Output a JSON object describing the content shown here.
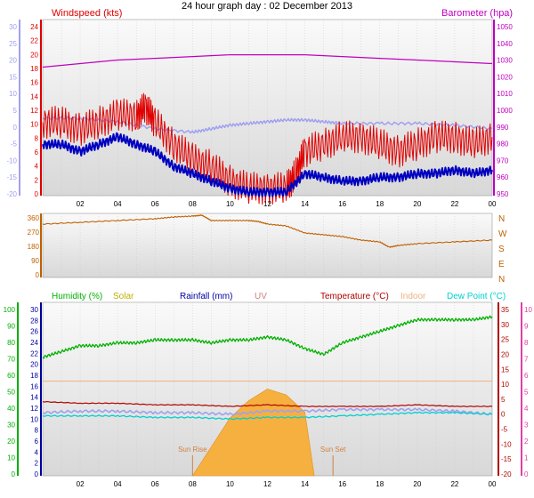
{
  "title": "24 hour graph day : 02 December 2013",
  "colors": {
    "windspeed": "#e00000",
    "gust_avg": "#0000c0",
    "barometer": "#c000c0",
    "winddir": "#c06000",
    "humidity": "#00b000",
    "solar": "#c0b000",
    "rainfall": "#0000a0",
    "uv": "#d08080",
    "temperature": "#b00000",
    "indoor": "#f0b080",
    "dewpoint": "#00d0d0",
    "lavender": "#a0a0f0",
    "sunrise": "#d08040",
    "plot_bg": "#e8e8e8"
  },
  "x_ticks": [
    "02",
    "04",
    "06",
    "08",
    "10",
    "12",
    "14",
    "16",
    "18",
    "20",
    "22",
    "00"
  ],
  "chart_data": [
    {
      "type": "line",
      "title": "Wind / Barometer",
      "x_range": [
        0,
        24
      ],
      "axes": {
        "left_outer": {
          "label": "",
          "ticks": [
            "30",
            "25",
            "20",
            "15",
            "10",
            "5",
            "0",
            "-5",
            "-10",
            "-15",
            "-20"
          ],
          "range": [
            -20,
            30
          ]
        },
        "left": {
          "label": "Windspeed (kts)",
          "ticks": [
            "24",
            "22",
            "20",
            "18",
            "16",
            "14",
            "12",
            "10",
            "8",
            "6",
            "4",
            "2",
            "0"
          ],
          "range": [
            0,
            24
          ]
        },
        "right": {
          "label": "Barometer (hpa)",
          "ticks": [
            "1050",
            "1040",
            "1030",
            "1020",
            "1010",
            "1000",
            "990",
            "980",
            "970",
            "960",
            "950"
          ],
          "range": [
            950,
            1050
          ]
        }
      },
      "series": [
        {
          "name": "Windspeed (kts)",
          "axis": "left",
          "x": [
            0,
            1,
            2,
            3,
            4,
            5,
            5.5,
            6,
            7,
            8,
            9,
            10,
            11,
            12,
            13,
            13.5,
            14,
            15,
            16,
            17,
            18,
            19,
            20,
            21,
            22,
            23,
            24
          ],
          "y": [
            10,
            10,
            9,
            10,
            11,
            11,
            12,
            10,
            7,
            5,
            4,
            2,
            1,
            1,
            1,
            3,
            6,
            7,
            8,
            8,
            7,
            6,
            7,
            8,
            8,
            7,
            8
          ]
        },
        {
          "name": "Wind avg",
          "axis": "left",
          "x": [
            0,
            1,
            2,
            3,
            4,
            5,
            6,
            7,
            8,
            9,
            10,
            11,
            12,
            13,
            14,
            15,
            16,
            17,
            18,
            19,
            20,
            21,
            22,
            23,
            24
          ],
          "y": [
            7,
            7,
            6,
            7,
            8,
            7,
            6,
            4,
            3,
            2,
            1,
            0.5,
            0.5,
            0.5,
            3,
            2.5,
            2,
            2,
            2.5,
            2.5,
            3,
            3,
            3.5,
            3,
            3.5
          ]
        },
        {
          "name": "Barometer (hpa)",
          "axis": "right",
          "x": [
            0,
            2,
            4,
            6,
            8,
            10,
            12,
            14,
            16,
            18,
            20,
            22,
            24
          ],
          "y": [
            1023,
            1025,
            1027,
            1028,
            1029,
            1030,
            1030,
            1030,
            1029,
            1028,
            1027,
            1026,
            1025
          ]
        },
        {
          "name": "",
          "axis": "left_outer",
          "x": [
            0,
            2,
            4,
            6,
            8,
            9,
            10,
            11,
            12,
            13,
            14,
            15,
            16,
            18,
            20,
            22,
            24
          ],
          "y": [
            2,
            2,
            1,
            -1,
            -2,
            -1,
            0,
            0.5,
            1,
            1.5,
            1.5,
            1,
            0.5,
            0.5,
            0.5,
            0,
            -1
          ]
        }
      ]
    },
    {
      "type": "line",
      "title": "Wind direction",
      "x_range": [
        0,
        24
      ],
      "axes": {
        "left": {
          "label": "",
          "ticks": [
            "360",
            "270",
            "180",
            "90",
            "0"
          ],
          "range": [
            0,
            360
          ]
        },
        "right": {
          "label": "",
          "ticks": [
            "N",
            "W",
            "S",
            "E",
            "N"
          ]
        }
      },
      "series": [
        {
          "name": "",
          "x": [
            0,
            2,
            4,
            6,
            7,
            8,
            8.5,
            9,
            10,
            11,
            11.5,
            12,
            13,
            14,
            15,
            16,
            17,
            18,
            18.5,
            19,
            20,
            22,
            24
          ],
          "y": [
            300,
            310,
            320,
            330,
            340,
            345,
            350,
            320,
            320,
            320,
            315,
            300,
            290,
            250,
            240,
            230,
            210,
            200,
            170,
            180,
            190,
            200,
            210
          ]
        }
      ]
    },
    {
      "type": "line",
      "title": "Humidity / Temperature",
      "x_range": [
        0,
        24
      ],
      "legend": [
        "Humidity (%)",
        "Solar",
        "Rainfall (mm)",
        "UV",
        "Temperature (°C)",
        "Indoor",
        "Dew Point (°C)"
      ],
      "axes": {
        "left_outer": {
          "label": "Humidity (%)",
          "ticks": [
            "100",
            "90",
            "80",
            "70",
            "60",
            "50",
            "40",
            "30",
            "20",
            "10",
            "0"
          ],
          "range": [
            0,
            100
          ]
        },
        "left": {
          "label": "",
          "ticks": [
            "30",
            "28",
            "26",
            "24",
            "22",
            "20",
            "18",
            "16",
            "14",
            "12",
            "10",
            "8",
            "6",
            "4",
            "2",
            "0"
          ],
          "range": [
            0,
            30
          ]
        },
        "right": {
          "label": "Temperature (°C)",
          "ticks": [
            "35",
            "30",
            "25",
            "20",
            "15",
            "10",
            "5",
            "0",
            "-5",
            "-10",
            "-15",
            "-20"
          ],
          "range": [
            -20,
            35
          ]
        },
        "right_outer": {
          "label": "",
          "ticks": [
            "10",
            "9",
            "8",
            "7",
            "6",
            "5",
            "4",
            "3",
            "2",
            "1",
            "0"
          ],
          "range": [
            0,
            10
          ]
        }
      },
      "annotations": [
        {
          "text": "Sun Rise",
          "x": 8
        },
        {
          "text": "Sun Set",
          "x": 15.5
        }
      ],
      "series": [
        {
          "name": "Humidity (%)",
          "axis": "left",
          "x": [
            0,
            1,
            2,
            3,
            4,
            5,
            6,
            7,
            8,
            9,
            10,
            11,
            12,
            13,
            14,
            15,
            16,
            17,
            18,
            19,
            20,
            21,
            22,
            23,
            24
          ],
          "y": [
            20.5,
            21.5,
            22.5,
            22.5,
            23,
            23,
            23.5,
            23.5,
            23.5,
            23,
            23.5,
            23.5,
            24,
            23.5,
            22,
            21,
            23,
            24,
            25,
            26,
            27,
            27,
            27,
            27,
            27.5
          ]
        },
        {
          "name": "Temperature (°C)",
          "axis": "right",
          "x": [
            0,
            2,
            4,
            6,
            8,
            10,
            12,
            14,
            16,
            18,
            20,
            22,
            24
          ],
          "y": [
            3.5,
            3,
            3,
            2.5,
            2.5,
            2,
            2.5,
            2,
            2,
            2,
            2.5,
            2,
            2
          ]
        },
        {
          "name": "Indoor",
          "axis": "right",
          "x": [
            0,
            4,
            8,
            12,
            16,
            20,
            24
          ],
          "y": [
            10,
            10,
            10,
            10,
            10,
            10,
            10
          ]
        },
        {
          "name": "Dew Point (°C)",
          "axis": "right",
          "x": [
            0,
            2,
            4,
            6,
            8,
            10,
            12,
            14,
            16,
            18,
            20,
            22,
            24
          ],
          "y": [
            -1,
            -1,
            -1,
            -1.5,
            -1.5,
            -2,
            -1.5,
            -1.5,
            -1,
            -0.5,
            0,
            0,
            -0.5
          ]
        },
        {
          "name": "",
          "axis": "right",
          "x": [
            0,
            2,
            4,
            6,
            8,
            10,
            12,
            14,
            16,
            18,
            20,
            22,
            24
          ],
          "y": [
            0,
            0.5,
            0.5,
            0,
            0,
            -0.5,
            0.5,
            0.5,
            1,
            1,
            1,
            0.5,
            -0.5
          ]
        },
        {
          "name": "Solar",
          "axis": "left",
          "x": [
            8,
            9,
            10,
            11,
            12,
            13,
            14,
            14.5
          ],
          "y": [
            0,
            0.5,
            1,
            1.3,
            1.5,
            1.4,
            1.1,
            0
          ]
        }
      ]
    }
  ]
}
